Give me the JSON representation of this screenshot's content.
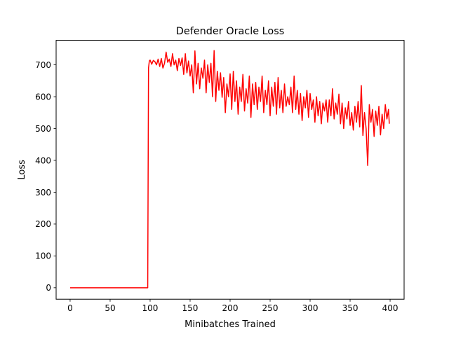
{
  "chart_data": {
    "type": "line",
    "title": "Defender Oracle Loss",
    "xlabel": "Minibatches Trained",
    "ylabel": "Loss",
    "xlim": [
      -17.5,
      417.5
    ],
    "ylim": [
      -36,
      777
    ],
    "xticks": [
      0,
      50,
      100,
      150,
      200,
      250,
      300,
      350,
      400
    ],
    "yticks": [
      0,
      100,
      200,
      300,
      400,
      500,
      600,
      700
    ],
    "grid": false,
    "series": [
      {
        "color": "#ff0000",
        "points": [
          [
            0,
            0
          ],
          [
            97,
            0
          ],
          [
            98,
            690
          ],
          [
            99,
            712
          ],
          [
            100,
            715
          ],
          [
            102,
            702
          ],
          [
            104,
            714
          ],
          [
            106,
            710
          ],
          [
            108,
            700
          ],
          [
            110,
            718
          ],
          [
            112,
            695
          ],
          [
            114,
            720
          ],
          [
            116,
            690
          ],
          [
            118,
            705
          ],
          [
            120,
            740
          ],
          [
            122,
            708
          ],
          [
            124,
            718
          ],
          [
            126,
            695
          ],
          [
            128,
            735
          ],
          [
            130,
            700
          ],
          [
            132,
            715
          ],
          [
            134,
            682
          ],
          [
            136,
            720
          ],
          [
            138,
            698
          ],
          [
            140,
            722
          ],
          [
            142,
            670
          ],
          [
            144,
            735
          ],
          [
            146,
            675
          ],
          [
            148,
            712
          ],
          [
            150,
            665
          ],
          [
            152,
            700
          ],
          [
            154,
            612
          ],
          [
            156,
            744
          ],
          [
            158,
            640
          ],
          [
            160,
            705
          ],
          [
            162,
            625
          ],
          [
            164,
            690
          ],
          [
            166,
            658
          ],
          [
            168,
            715
          ],
          [
            170,
            612
          ],
          [
            172,
            700
          ],
          [
            174,
            645
          ],
          [
            176,
            705
          ],
          [
            178,
            600
          ],
          [
            180,
            745
          ],
          [
            182,
            585
          ],
          [
            184,
            680
          ],
          [
            186,
            620
          ],
          [
            188,
            675
          ],
          [
            190,
            598
          ],
          [
            192,
            660
          ],
          [
            194,
            550
          ],
          [
            196,
            640
          ],
          [
            198,
            600
          ],
          [
            200,
            672
          ],
          [
            202,
            560
          ],
          [
            204,
            680
          ],
          [
            206,
            585
          ],
          [
            208,
            650
          ],
          [
            210,
            545
          ],
          [
            212,
            630
          ],
          [
            214,
            585
          ],
          [
            216,
            670
          ],
          [
            218,
            555
          ],
          [
            220,
            625
          ],
          [
            222,
            580
          ],
          [
            224,
            665
          ],
          [
            226,
            535
          ],
          [
            228,
            640
          ],
          [
            230,
            575
          ],
          [
            232,
            645
          ],
          [
            234,
            560
          ],
          [
            236,
            630
          ],
          [
            238,
            585
          ],
          [
            240,
            665
          ],
          [
            242,
            550
          ],
          [
            244,
            620
          ],
          [
            246,
            575
          ],
          [
            248,
            650
          ],
          [
            250,
            540
          ],
          [
            252,
            630
          ],
          [
            254,
            570
          ],
          [
            256,
            645
          ],
          [
            258,
            545
          ],
          [
            260,
            660
          ],
          [
            262,
            565
          ],
          [
            264,
            620
          ],
          [
            266,
            550
          ],
          [
            268,
            640
          ],
          [
            270,
            570
          ],
          [
            272,
            600
          ],
          [
            274,
            575
          ],
          [
            276,
            630
          ],
          [
            278,
            550
          ],
          [
            280,
            665
          ],
          [
            282,
            560
          ],
          [
            284,
            620
          ],
          [
            286,
            545
          ],
          [
            288,
            610
          ],
          [
            290,
            525
          ],
          [
            292,
            600
          ],
          [
            294,
            565
          ],
          [
            296,
            620
          ],
          [
            298,
            535
          ],
          [
            300,
            610
          ],
          [
            302,
            560
          ],
          [
            304,
            590
          ],
          [
            306,
            520
          ],
          [
            308,
            600
          ],
          [
            310,
            540
          ],
          [
            312,
            585
          ],
          [
            314,
            515
          ],
          [
            316,
            580
          ],
          [
            318,
            555
          ],
          [
            320,
            590
          ],
          [
            322,
            520
          ],
          [
            324,
            590
          ],
          [
            326,
            540
          ],
          [
            328,
            625
          ],
          [
            330,
            530
          ],
          [
            332,
            580
          ],
          [
            334,
            545
          ],
          [
            336,
            608
          ],
          [
            338,
            515
          ],
          [
            340,
            580
          ],
          [
            342,
            500
          ],
          [
            344,
            565
          ],
          [
            346,
            530
          ],
          [
            348,
            585
          ],
          [
            350,
            510
          ],
          [
            352,
            550
          ],
          [
            354,
            495
          ],
          [
            356,
            570
          ],
          [
            358,
            520
          ],
          [
            360,
            585
          ],
          [
            362,
            505
          ],
          [
            364,
            635
          ],
          [
            366,
            478
          ],
          [
            368,
            550
          ],
          [
            370,
            500
          ],
          [
            372,
            384
          ],
          [
            374,
            575
          ],
          [
            376,
            520
          ],
          [
            378,
            560
          ],
          [
            380,
            475
          ],
          [
            382,
            555
          ],
          [
            384,
            510
          ],
          [
            386,
            570
          ],
          [
            388,
            480
          ],
          [
            390,
            545
          ],
          [
            392,
            500
          ],
          [
            394,
            575
          ],
          [
            396,
            530
          ],
          [
            398,
            560
          ],
          [
            399,
            515
          ]
        ]
      }
    ]
  }
}
